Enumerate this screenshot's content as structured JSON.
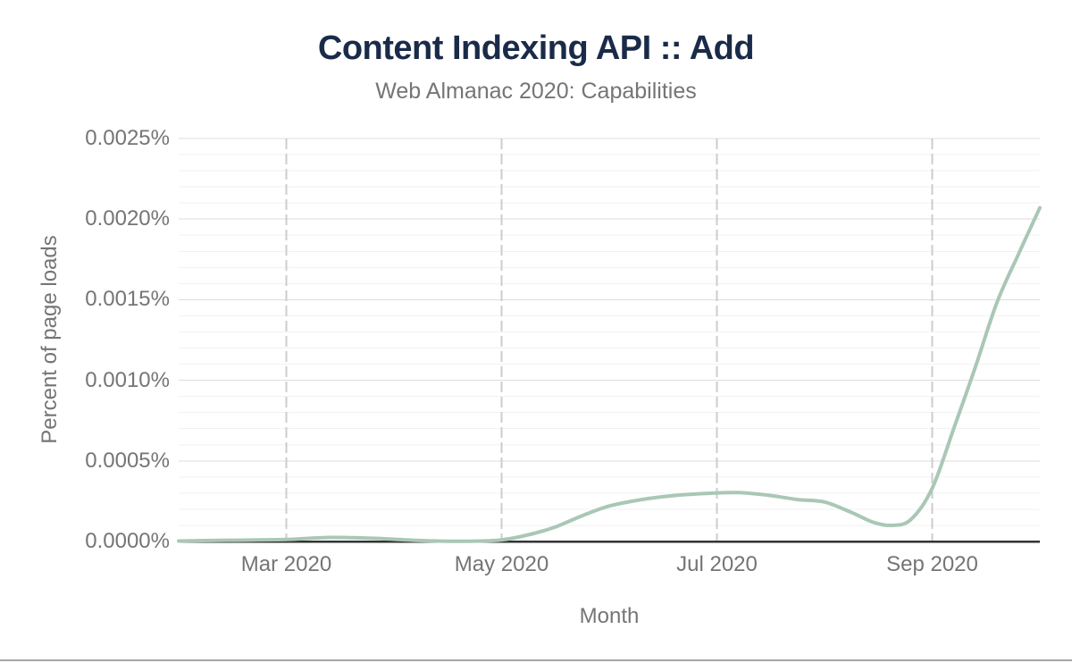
{
  "header": {
    "title": "Content Indexing API :: Add",
    "subtitle": "Web Almanac 2020: Capabilities"
  },
  "chart_data": {
    "type": "line",
    "title": "Content Indexing API :: Add",
    "subtitle": "Web Almanac 2020: Capabilities",
    "xlabel": "Month",
    "ylabel": "Percent of page loads",
    "x_tick_labels": [
      "Mar 2020",
      "May 2020",
      "Jul 2020",
      "Sep 2020"
    ],
    "x_tick_months": [
      1,
      3,
      5,
      7
    ],
    "x_range_note": "x measured in months since Feb 2020; plot spans Feb 2020 to Oct 2020",
    "xlim_months": [
      0,
      8
    ],
    "y_tick_labels": [
      "0.0000%",
      "0.0005%",
      "0.0010%",
      "0.0015%",
      "0.0020%",
      "0.0025%"
    ],
    "ylim": [
      0,
      0.0025
    ],
    "y_major_step": 0.0005,
    "y_minor_step": 0.0001,
    "grid": "horizontal major+minor on; vertical dashed lines at month ticks",
    "legend": "none",
    "series": [
      {
        "name": "Content Indexing API :: Add",
        "units": "percent of page loads",
        "points": [
          [
            0.0,
            3e-06
          ],
          [
            0.5,
            8e-06
          ],
          [
            1.0,
            1.2e-05
          ],
          [
            1.4,
            2.5e-05
          ],
          [
            1.8,
            2e-05
          ],
          [
            2.2,
            7e-06
          ],
          [
            2.6,
            1e-06
          ],
          [
            3.0,
            1e-05
          ],
          [
            3.3,
            5e-05
          ],
          [
            3.5,
            9e-05
          ],
          [
            3.75,
            0.00016
          ],
          [
            4.0,
            0.00022
          ],
          [
            4.3,
            0.00026
          ],
          [
            4.6,
            0.000285
          ],
          [
            4.9,
            0.000298
          ],
          [
            5.2,
            0.000303
          ],
          [
            5.5,
            0.000285
          ],
          [
            5.75,
            0.00026
          ],
          [
            6.0,
            0.000245
          ],
          [
            6.25,
            0.00018
          ],
          [
            6.45,
            0.00012
          ],
          [
            6.62,
            0.0001
          ],
          [
            6.8,
            0.000135
          ],
          [
            7.0,
            0.00033
          ],
          [
            7.2,
            0.0007
          ],
          [
            7.4,
            0.00108
          ],
          [
            7.6,
            0.00148
          ],
          [
            7.8,
            0.00178
          ],
          [
            8.0,
            0.00207
          ]
        ]
      }
    ]
  },
  "colors": {
    "title": "#1a2b49",
    "label_gray": "#757575",
    "axis_line": "#333333",
    "grid_major": "#dedede",
    "grid_minor": "#f2f2f2",
    "grid_dashed": "#cccccc",
    "series_line": "#aac7b6",
    "bottom_rule": "#a6a6a6"
  }
}
